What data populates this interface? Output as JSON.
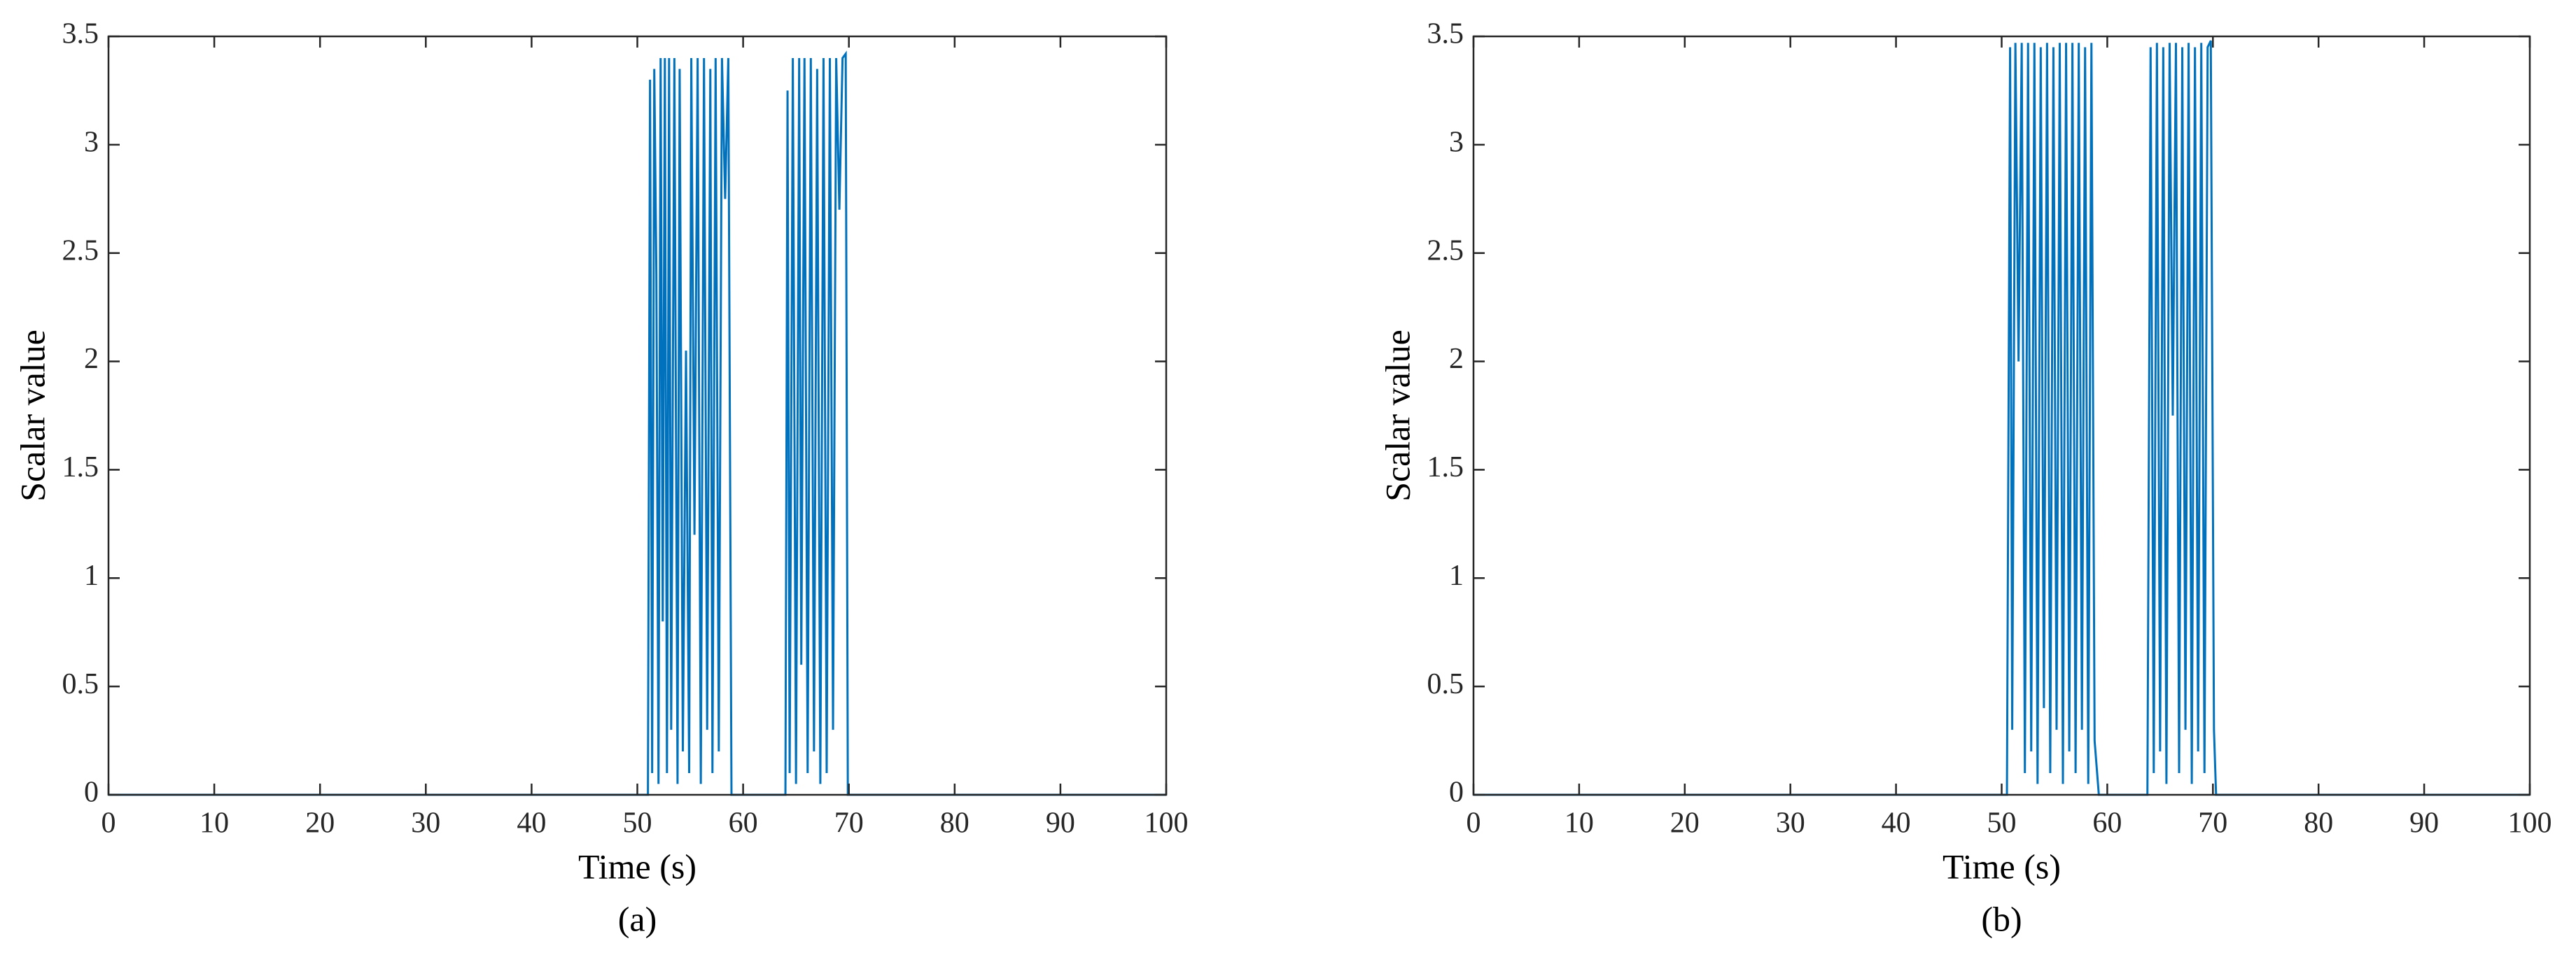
{
  "chart_data": [
    {
      "type": "line",
      "xlabel": "Time (s)",
      "ylabel": "Scalar value",
      "caption": "(a)",
      "xlim": [
        0,
        100
      ],
      "ylim": [
        0,
        3.5
      ],
      "xticks": [
        0,
        10,
        20,
        30,
        40,
        50,
        60,
        70,
        80,
        90,
        100
      ],
      "yticks": [
        0,
        0.5,
        1,
        1.5,
        2,
        2.5,
        3,
        3.5
      ],
      "series": [
        {
          "color": "#0072bd",
          "x": [
            0,
            51.0,
            51.2,
            51.4,
            51.6,
            51.8,
            52.0,
            52.2,
            52.4,
            52.6,
            52.8,
            53.0,
            53.2,
            53.5,
            53.8,
            54.0,
            54.3,
            54.6,
            54.9,
            55.1,
            55.4,
            55.7,
            56.0,
            56.3,
            56.6,
            56.9,
            57.1,
            57.4,
            57.7,
            58.0,
            58.3,
            58.6,
            58.9,
            64.0,
            64.2,
            64.4,
            64.7,
            65.0,
            65.3,
            65.5,
            65.8,
            66.1,
            66.4,
            66.7,
            67.0,
            67.3,
            67.6,
            67.9,
            68.2,
            68.5,
            68.8,
            69.1,
            69.4,
            69.7,
            69.9,
            100
          ],
          "values": [
            0,
            0,
            3.3,
            0.1,
            3.35,
            2.4,
            0.05,
            3.4,
            0.8,
            3.4,
            0.1,
            3.4,
            0.3,
            3.4,
            0.05,
            3.35,
            0.2,
            2.05,
            0.1,
            3.4,
            1.2,
            3.4,
            0.05,
            3.4,
            0.3,
            3.35,
            0.1,
            3.4,
            0.2,
            3.4,
            2.75,
            3.4,
            0,
            0,
            3.25,
            0.1,
            3.4,
            0.05,
            3.4,
            0.6,
            3.4,
            0.1,
            3.4,
            0.2,
            3.35,
            0.05,
            3.4,
            0.1,
            3.4,
            0.3,
            3.4,
            2.7,
            3.4,
            3.42,
            0,
            0
          ]
        }
      ]
    },
    {
      "type": "line",
      "xlabel": "Time (s)",
      "ylabel": "Scalar value",
      "caption": "(b)",
      "xlim": [
        0,
        100
      ],
      "ylim": [
        0,
        3.5
      ],
      "xticks": [
        0,
        10,
        20,
        30,
        40,
        50,
        60,
        70,
        80,
        90,
        100
      ],
      "yticks": [
        0,
        0.5,
        1,
        1.5,
        2,
        2.5,
        3,
        3.5
      ],
      "series": [
        {
          "color": "#0072bd",
          "x": [
            0,
            50.5,
            50.8,
            51.0,
            51.3,
            51.6,
            51.9,
            52.2,
            52.5,
            52.8,
            53.1,
            53.4,
            53.7,
            54.0,
            54.3,
            54.6,
            54.9,
            55.2,
            55.5,
            55.8,
            56.1,
            56.4,
            56.7,
            57.0,
            57.3,
            57.6,
            57.9,
            58.2,
            58.5,
            58.8,
            59.2,
            63.8,
            64.1,
            64.4,
            64.7,
            65.0,
            65.3,
            65.6,
            65.9,
            66.2,
            66.5,
            66.8,
            67.1,
            67.4,
            67.7,
            68.0,
            68.3,
            68.6,
            68.9,
            69.2,
            69.5,
            69.8,
            70.1,
            70.3,
            100
          ],
          "values": [
            0,
            0,
            3.45,
            0.3,
            3.47,
            2.0,
            3.47,
            0.1,
            3.47,
            0.2,
            3.47,
            0.05,
            3.45,
            0.4,
            3.47,
            0.1,
            3.45,
            0.3,
            3.47,
            0.05,
            3.47,
            0.2,
            3.47,
            0.1,
            3.47,
            0.3,
            3.45,
            0.05,
            3.47,
            0.25,
            0,
            0,
            3.45,
            0.1,
            3.47,
            0.2,
            3.45,
            0.05,
            3.47,
            1.75,
            3.47,
            0.1,
            3.45,
            0.3,
            3.47,
            0.05,
            3.45,
            0.2,
            3.47,
            0.1,
            3.45,
            3.48,
            0.3,
            0,
            0
          ]
        }
      ]
    }
  ]
}
